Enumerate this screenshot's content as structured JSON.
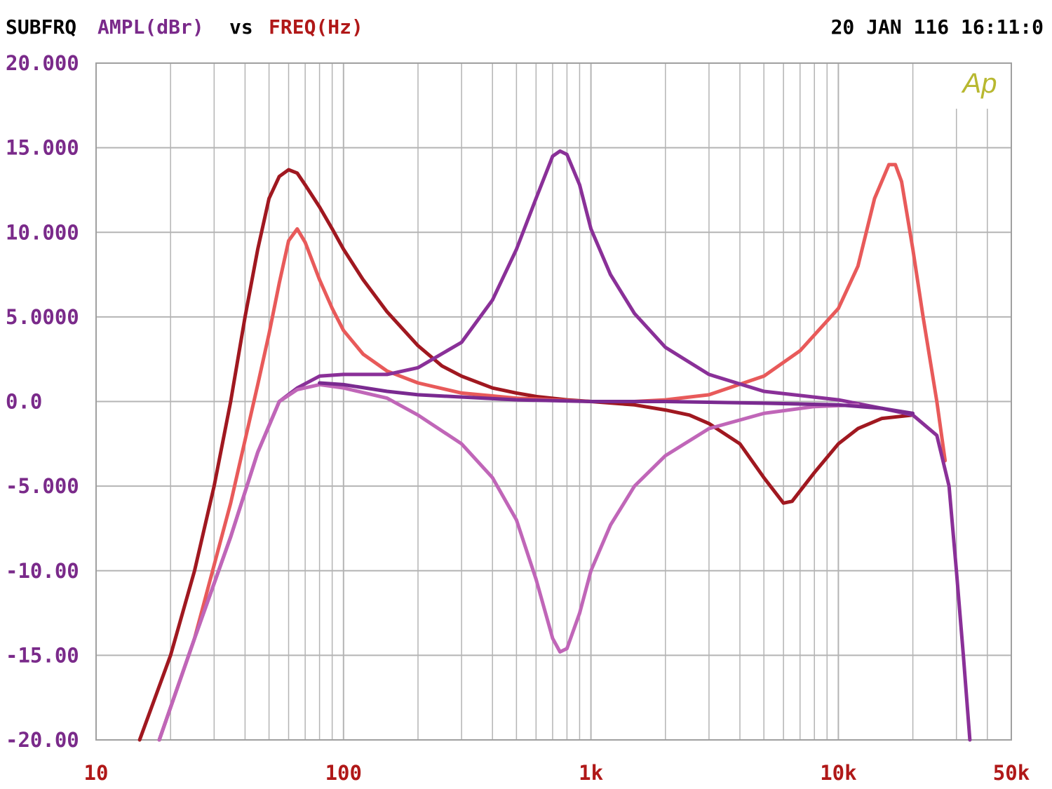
{
  "header": {
    "prefix": "SUBFRQ",
    "y_quantity": "AMPL(dBr)",
    "vs": "vs",
    "x_quantity": "FREQ(Hz)",
    "timestamp": "20 JAN 116 16:11:0",
    "logo_text": "Ap"
  },
  "colors": {
    "background": "#ffffff",
    "grid": "#b4b4b4",
    "frame": "#a0a0a0",
    "header_text": "#000000",
    "y_tick_text": "#7a2a8a",
    "x_tick_text": "#b01818",
    "logo": "#b8b830"
  },
  "chart_data": {
    "type": "line",
    "title": "",
    "xlabel": "FREQ(Hz)",
    "ylabel": "AMPL(dBr)",
    "x_scale": "log",
    "xlim": [
      10,
      50000
    ],
    "ylim": [
      -20,
      20
    ],
    "grid": true,
    "legend": "none",
    "x_ticks": [
      {
        "value": 10,
        "label": "10"
      },
      {
        "value": 100,
        "label": "100"
      },
      {
        "value": 1000,
        "label": "1k"
      },
      {
        "value": 10000,
        "label": "10k"
      },
      {
        "value": 50000,
        "label": "50k"
      }
    ],
    "y_ticks": [
      {
        "value": 20,
        "label": "20.000"
      },
      {
        "value": 15,
        "label": "15.000"
      },
      {
        "value": 10,
        "label": "10.000"
      },
      {
        "value": 5,
        "label": "5.0000"
      },
      {
        "value": 0,
        "label": "0.0"
      },
      {
        "value": -5,
        "label": "-5.000"
      },
      {
        "value": -10,
        "label": "-10.00"
      },
      {
        "value": -15,
        "label": "-15.00"
      },
      {
        "value": -20,
        "label": "-20.00"
      }
    ],
    "series": [
      {
        "color": "#a01820",
        "points": [
          [
            15,
            -20
          ],
          [
            20,
            -15
          ],
          [
            25,
            -10
          ],
          [
            30,
            -5
          ],
          [
            35,
            0
          ],
          [
            40,
            5
          ],
          [
            45,
            9
          ],
          [
            50,
            12
          ],
          [
            55,
            13.3
          ],
          [
            60,
            13.7
          ],
          [
            65,
            13.5
          ],
          [
            70,
            12.8
          ],
          [
            80,
            11.5
          ],
          [
            90,
            10.2
          ],
          [
            100,
            9
          ],
          [
            120,
            7.2
          ],
          [
            150,
            5.3
          ],
          [
            200,
            3.3
          ],
          [
            250,
            2.1
          ],
          [
            300,
            1.5
          ],
          [
            400,
            0.8
          ],
          [
            500,
            0.5
          ],
          [
            600,
            0.3
          ],
          [
            800,
            0.1
          ],
          [
            1000,
            0
          ],
          [
            1500,
            -0.2
          ],
          [
            2000,
            -0.5
          ],
          [
            2500,
            -0.8
          ],
          [
            3000,
            -1.3
          ],
          [
            4000,
            -2.5
          ],
          [
            5000,
            -4.5
          ],
          [
            6000,
            -6
          ],
          [
            6500,
            -5.9
          ],
          [
            8000,
            -4.2
          ],
          [
            10000,
            -2.5
          ],
          [
            12000,
            -1.6
          ],
          [
            15000,
            -1
          ],
          [
            20000,
            -0.8
          ]
        ]
      },
      {
        "color": "#e85a5a",
        "points": [
          [
            18,
            -20
          ],
          [
            25,
            -14
          ],
          [
            35,
            -6
          ],
          [
            45,
            1
          ],
          [
            50,
            4
          ],
          [
            55,
            7
          ],
          [
            60,
            9.5
          ],
          [
            65,
            10.2
          ],
          [
            70,
            9.4
          ],
          [
            80,
            7.2
          ],
          [
            90,
            5.5
          ],
          [
            100,
            4.2
          ],
          [
            120,
            2.8
          ],
          [
            150,
            1.8
          ],
          [
            200,
            1.1
          ],
          [
            300,
            0.5
          ],
          [
            500,
            0.2
          ],
          [
            700,
            0.1
          ],
          [
            1000,
            0
          ],
          [
            1500,
            0
          ],
          [
            2000,
            0.1
          ],
          [
            3000,
            0.4
          ],
          [
            5000,
            1.5
          ],
          [
            7000,
            3
          ],
          [
            10000,
            5.5
          ],
          [
            12000,
            8
          ],
          [
            14000,
            12
          ],
          [
            16000,
            14
          ],
          [
            17000,
            14
          ],
          [
            18000,
            13
          ],
          [
            20000,
            9
          ],
          [
            22000,
            5
          ],
          [
            25000,
            0
          ],
          [
            27000,
            -3.5
          ]
        ]
      },
      {
        "color": "#8a3098",
        "points": [
          [
            18,
            -20
          ],
          [
            25,
            -14
          ],
          [
            35,
            -8
          ],
          [
            45,
            -3
          ],
          [
            55,
            0
          ],
          [
            65,
            0.8
          ],
          [
            80,
            1.5
          ],
          [
            100,
            1.6
          ],
          [
            150,
            1.6
          ],
          [
            200,
            2
          ],
          [
            300,
            3.5
          ],
          [
            400,
            6
          ],
          [
            500,
            9
          ],
          [
            600,
            12
          ],
          [
            700,
            14.5
          ],
          [
            750,
            14.8
          ],
          [
            800,
            14.6
          ],
          [
            900,
            12.8
          ],
          [
            1000,
            10.2
          ],
          [
            1200,
            7.5
          ],
          [
            1500,
            5.2
          ],
          [
            2000,
            3.2
          ],
          [
            3000,
            1.6
          ],
          [
            5000,
            0.6
          ],
          [
            10000,
            0.1
          ],
          [
            15000,
            -0.4
          ],
          [
            20000,
            -0.8
          ],
          [
            25000,
            -2
          ],
          [
            28000,
            -5
          ],
          [
            30000,
            -10
          ],
          [
            32000,
            -15
          ],
          [
            34000,
            -20
          ]
        ]
      },
      {
        "color": "#c066b8",
        "points": [
          [
            18,
            -20
          ],
          [
            25,
            -14
          ],
          [
            35,
            -8
          ],
          [
            45,
            -3
          ],
          [
            55,
            0
          ],
          [
            65,
            0.7
          ],
          [
            80,
            1
          ],
          [
            100,
            0.8
          ],
          [
            150,
            0.2
          ],
          [
            200,
            -0.8
          ],
          [
            300,
            -2.5
          ],
          [
            400,
            -4.5
          ],
          [
            500,
            -7
          ],
          [
            600,
            -10.5
          ],
          [
            700,
            -14
          ],
          [
            750,
            -14.8
          ],
          [
            800,
            -14.6
          ],
          [
            900,
            -12.5
          ],
          [
            1000,
            -10
          ],
          [
            1200,
            -7.3
          ],
          [
            1500,
            -5
          ],
          [
            2000,
            -3.2
          ],
          [
            3000,
            -1.6
          ],
          [
            5000,
            -0.7
          ],
          [
            8000,
            -0.3
          ],
          [
            12000,
            -0.2
          ]
        ]
      },
      {
        "color": "#7a2a90",
        "points": [
          [
            80,
            1.1
          ],
          [
            100,
            1
          ],
          [
            150,
            0.6
          ],
          [
            200,
            0.4
          ],
          [
            500,
            0.1
          ],
          [
            1000,
            0
          ],
          [
            2000,
            0
          ],
          [
            5000,
            -0.1
          ],
          [
            10000,
            -0.2
          ],
          [
            15000,
            -0.4
          ],
          [
            20000,
            -0.7
          ]
        ]
      }
    ]
  }
}
